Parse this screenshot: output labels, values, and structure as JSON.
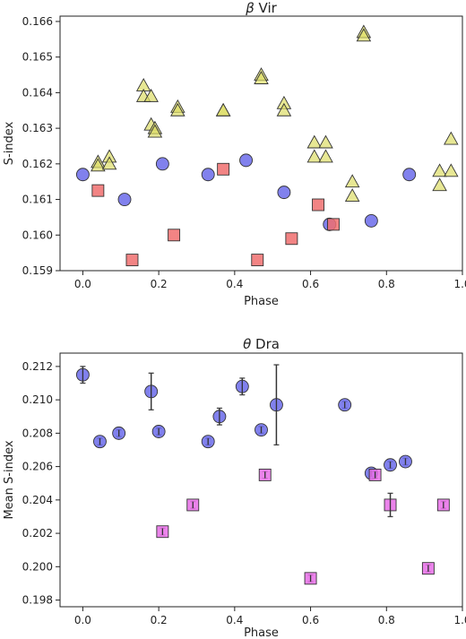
{
  "chart_data": [
    {
      "type": "scatter",
      "title": "β Vir",
      "title_symbol": "β",
      "title_rest": " Vir",
      "xlabel": "Phase",
      "ylabel": "S-index",
      "xlim": [
        -0.06,
        1.0
      ],
      "ylim": [
        0.159,
        0.16615
      ],
      "xticks": [
        0.0,
        0.2,
        0.4,
        0.6,
        0.8,
        1.0
      ],
      "xtick_labels": [
        "0.0",
        "0.2",
        "0.4",
        "0.6",
        "0.8",
        "1.0"
      ],
      "yticks": [
        0.159,
        0.16,
        0.161,
        0.162,
        0.163,
        0.164,
        0.165,
        0.166
      ],
      "ytick_labels": [
        "0.159",
        "0.160",
        "0.161",
        "0.162",
        "0.163",
        "0.164",
        "0.165",
        "0.166"
      ],
      "grid": false,
      "series": [
        {
          "marker": "circle",
          "color": "#6b6bea",
          "x": [
            0.0,
            0.11,
            0.21,
            0.33,
            0.43,
            0.53,
            0.65,
            0.76,
            0.86
          ],
          "y": [
            0.1617,
            0.161,
            0.162,
            0.1617,
            0.1621,
            0.1612,
            0.1603,
            0.1604,
            0.1617
          ]
        },
        {
          "marker": "square",
          "color": "#f06e6e",
          "x": [
            0.04,
            0.13,
            0.24,
            0.37,
            0.46,
            0.55,
            0.62,
            0.66
          ],
          "y": [
            0.16125,
            0.1593,
            0.16,
            0.16185,
            0.1593,
            0.1599,
            0.16085,
            0.1603
          ]
        },
        {
          "marker": "triangle",
          "color": "#dddd66",
          "x": [
            0.04,
            0.04,
            0.07,
            0.07,
            0.16,
            0.16,
            0.18,
            0.18,
            0.19,
            0.19,
            0.25,
            0.25,
            0.37,
            0.37,
            0.47,
            0.47,
            0.53,
            0.53,
            0.61,
            0.61,
            0.64,
            0.64,
            0.71,
            0.71,
            0.74,
            0.74,
            0.94,
            0.94,
            0.97,
            0.97
          ],
          "y": [
            0.16205,
            0.16195,
            0.1622,
            0.162,
            0.1642,
            0.1639,
            0.1639,
            0.1631,
            0.163,
            0.1629,
            0.1636,
            0.1635,
            0.1635,
            0.1635,
            0.1645,
            0.1644,
            0.1637,
            0.1635,
            0.1626,
            0.1622,
            0.1626,
            0.1622,
            0.1615,
            0.1611,
            0.1657,
            0.1656,
            0.1618,
            0.1614,
            0.1627,
            0.1618
          ]
        }
      ]
    },
    {
      "type": "scatter",
      "title": "θ Dra",
      "title_symbol": "θ",
      "title_rest": " Dra",
      "xlabel": "Phase",
      "ylabel": "Mean S-index",
      "xlim": [
        -0.06,
        1.0
      ],
      "ylim": [
        0.1976,
        0.2128
      ],
      "xticks": [
        0.0,
        0.2,
        0.4,
        0.6,
        0.8,
        1.0
      ],
      "xtick_labels": [
        "0.0",
        "0.2",
        "0.4",
        "0.6",
        "0.8",
        "1.0"
      ],
      "yticks": [
        0.198,
        0.2,
        0.202,
        0.204,
        0.206,
        0.208,
        0.21,
        0.212
      ],
      "ytick_labels": [
        "0.198",
        "0.200",
        "0.202",
        "0.204",
        "0.206",
        "0.208",
        "0.210",
        "0.212"
      ],
      "grid": false,
      "series": [
        {
          "marker": "circle",
          "color": "#6b6bea",
          "x": [
            0.0,
            0.045,
            0.095,
            0.18,
            0.2,
            0.33,
            0.36,
            0.42,
            0.47,
            0.51,
            0.69,
            0.76,
            0.81,
            0.85
          ],
          "y": [
            0.2115,
            0.2075,
            0.208,
            0.2105,
            0.2081,
            0.2075,
            0.209,
            0.2108,
            0.2082,
            0.2097,
            0.2097,
            0.2056,
            0.2061,
            0.2063
          ],
          "yerr": [
            0.0005,
            0.0002,
            0.0002,
            0.0011,
            0.0002,
            0.0002,
            0.0005,
            0.0005,
            0.0002,
            0.0024,
            0.0002,
            0.0002,
            0.0002,
            0.0002
          ]
        },
        {
          "marker": "square",
          "color": "#e86fe8",
          "x": [
            0.21,
            0.29,
            0.48,
            0.6,
            0.77,
            0.81,
            0.91,
            0.95
          ],
          "y": [
            0.2021,
            0.2037,
            0.2055,
            0.1993,
            0.2055,
            0.2037,
            0.1999,
            0.2037
          ],
          "yerr": [
            0.0002,
            0.0002,
            0.0002,
            0.0002,
            0.0002,
            0.0007,
            0.0002,
            0.0002
          ]
        }
      ]
    }
  ]
}
